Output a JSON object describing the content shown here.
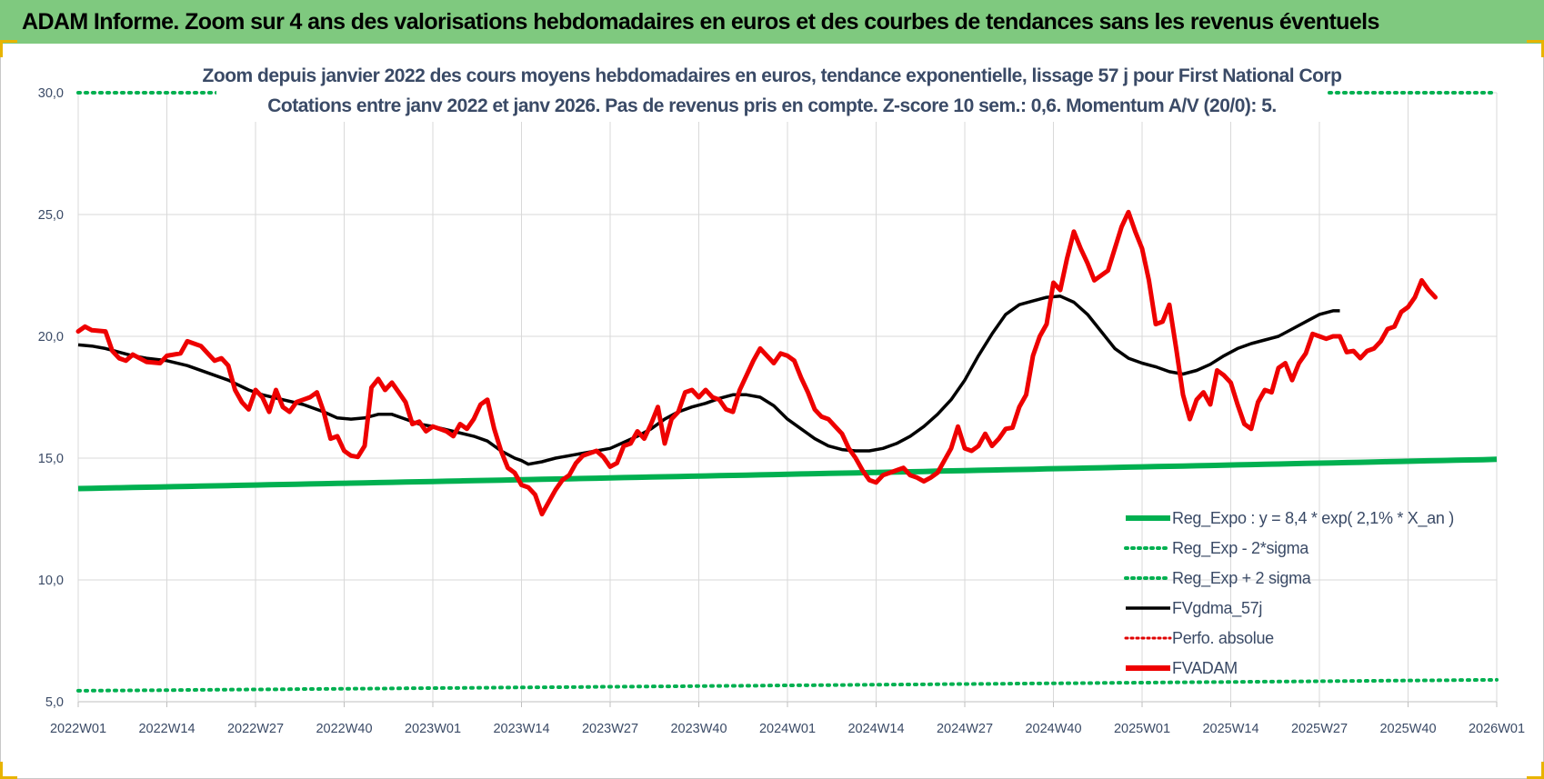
{
  "banner": {
    "title": "ADAM Informe. Zoom sur 4 ans des valorisations hebdomadaires en euros et des courbes de tendances sans les revenus éventuels"
  },
  "chart_data": {
    "type": "line",
    "title": "Zoom depuis janvier 2022 des cours moyens hebdomadaires en euros, tendance exponentielle, lissage 57 j pour First National Corp",
    "subtitle": "Cotations entre janv 2022 et janv 2026. Pas de revenus pris en compte. Z-score 10 sem.: 0,6. Momentum A/V (20/0): 5.",
    "xlabel": "",
    "ylabel": "",
    "x_ticks": [
      "2022W01",
      "2022W14",
      "2022W27",
      "2022W40",
      "2023W01",
      "2023W14",
      "2023W27",
      "2023W40",
      "2024W01",
      "2024W14",
      "2024W27",
      "2024W40",
      "2025W01",
      "2025W14",
      "2025W27",
      "2025W40",
      "2026W01"
    ],
    "ylim": [
      5,
      30
    ],
    "y_ticks": [
      "5,0",
      "10,0",
      "15,0",
      "20,0",
      "25,0",
      "30,0"
    ],
    "grid": true,
    "legend_position": "bottom-right",
    "colors": {
      "reg_expo": "#00b050",
      "fvgdma": "#000000",
      "perfo": "#e00000",
      "fvadam": "#ee0000"
    },
    "series": [
      {
        "name": "Reg_Expo : y = 8,4 * exp( 2,1% *  X_an )",
        "style": "solid-thick",
        "color": "#00b050",
        "start": 13.75,
        "end": 14.95
      },
      {
        "name": "Reg_Exp - 2*sigma",
        "style": "dotted",
        "color": "#00b050",
        "start": 5.45,
        "end": 5.9
      },
      {
        "name": "Reg_Exp + 2 sigma",
        "style": "dotted",
        "color": "#00b050",
        "start": 30.0,
        "end": 30.0
      },
      {
        "name": "FVgdma_57j",
        "style": "solid",
        "color": "#000000",
        "points": [
          [
            0,
            19.65
          ],
          [
            2,
            19.6
          ],
          [
            4,
            19.5
          ],
          [
            6,
            19.35
          ],
          [
            8,
            19.2
          ],
          [
            10,
            19.1
          ],
          [
            13,
            19.0
          ],
          [
            16,
            18.8
          ],
          [
            19,
            18.5
          ],
          [
            22,
            18.2
          ],
          [
            25,
            17.8
          ],
          [
            27,
            17.6
          ],
          [
            30,
            17.4
          ],
          [
            33,
            17.2
          ],
          [
            36,
            16.9
          ],
          [
            38,
            16.65
          ],
          [
            40,
            16.6
          ],
          [
            42,
            16.65
          ],
          [
            44,
            16.8
          ],
          [
            46,
            16.8
          ],
          [
            48,
            16.6
          ],
          [
            50,
            16.4
          ],
          [
            52,
            16.3
          ],
          [
            55,
            16.1
          ],
          [
            58,
            15.9
          ],
          [
            60,
            15.7
          ],
          [
            62,
            15.3
          ],
          [
            64,
            15.0
          ],
          [
            65,
            14.9
          ],
          [
            66,
            14.75
          ],
          [
            68,
            14.85
          ],
          [
            70,
            15.0
          ],
          [
            72,
            15.1
          ],
          [
            74,
            15.2
          ],
          [
            76,
            15.3
          ],
          [
            78,
            15.4
          ],
          [
            80,
            15.65
          ],
          [
            82,
            15.9
          ],
          [
            84,
            16.2
          ],
          [
            86,
            16.6
          ],
          [
            88,
            16.9
          ],
          [
            90,
            17.1
          ],
          [
            92,
            17.25
          ],
          [
            94,
            17.45
          ],
          [
            96,
            17.6
          ],
          [
            98,
            17.6
          ],
          [
            100,
            17.5
          ],
          [
            102,
            17.15
          ],
          [
            104,
            16.6
          ],
          [
            106,
            16.2
          ],
          [
            108,
            15.8
          ],
          [
            110,
            15.5
          ],
          [
            112,
            15.35
          ],
          [
            114,
            15.3
          ],
          [
            116,
            15.3
          ],
          [
            118,
            15.4
          ],
          [
            120,
            15.6
          ],
          [
            122,
            15.9
          ],
          [
            124,
            16.3
          ],
          [
            126,
            16.8
          ],
          [
            128,
            17.4
          ],
          [
            130,
            18.2
          ],
          [
            132,
            19.2
          ],
          [
            134,
            20.1
          ],
          [
            136,
            20.9
          ],
          [
            138,
            21.3
          ],
          [
            140,
            21.45
          ],
          [
            142,
            21.6
          ],
          [
            144,
            21.65
          ],
          [
            146,
            21.4
          ],
          [
            148,
            20.9
          ],
          [
            150,
            20.2
          ],
          [
            152,
            19.5
          ],
          [
            154,
            19.1
          ],
          [
            156,
            18.9
          ],
          [
            158,
            18.75
          ],
          [
            160,
            18.55
          ],
          [
            162,
            18.45
          ],
          [
            164,
            18.6
          ],
          [
            166,
            18.85
          ],
          [
            168,
            19.2
          ],
          [
            170,
            19.5
          ],
          [
            172,
            19.7
          ],
          [
            174,
            19.85
          ],
          [
            176,
            20.0
          ],
          [
            178,
            20.3
          ],
          [
            180,
            20.6
          ],
          [
            182,
            20.9
          ],
          [
            184,
            21.05
          ],
          [
            185,
            21.05
          ]
        ]
      },
      {
        "name": "Perfo. absolue",
        "style": "dotted",
        "color": "#e00000"
      },
      {
        "name": "FVADAM",
        "style": "solid-thick",
        "color": "#ee0000",
        "points": [
          [
            0,
            20.2
          ],
          [
            1,
            20.4
          ],
          [
            2,
            20.25
          ],
          [
            4,
            20.2
          ],
          [
            5,
            19.4
          ],
          [
            6,
            19.1
          ],
          [
            7,
            19.0
          ],
          [
            8,
            19.25
          ],
          [
            9,
            19.1
          ],
          [
            10,
            18.95
          ],
          [
            12,
            18.9
          ],
          [
            13,
            19.2
          ],
          [
            15,
            19.3
          ],
          [
            16,
            19.8
          ],
          [
            18,
            19.6
          ],
          [
            19,
            19.3
          ],
          [
            20,
            19.0
          ],
          [
            21,
            19.1
          ],
          [
            22,
            18.8
          ],
          [
            23,
            17.8
          ],
          [
            24,
            17.3
          ],
          [
            25,
            17.0
          ],
          [
            26,
            17.8
          ],
          [
            27,
            17.5
          ],
          [
            28,
            16.9
          ],
          [
            29,
            17.8
          ],
          [
            30,
            17.1
          ],
          [
            31,
            16.9
          ],
          [
            32,
            17.3
          ],
          [
            33,
            17.4
          ],
          [
            34,
            17.5
          ],
          [
            35,
            17.7
          ],
          [
            36,
            16.9
          ],
          [
            37,
            15.8
          ],
          [
            38,
            15.9
          ],
          [
            39,
            15.3
          ],
          [
            40,
            15.1
          ],
          [
            41,
            15.05
          ],
          [
            42,
            15.5
          ],
          [
            43,
            17.9
          ],
          [
            44,
            18.25
          ],
          [
            45,
            17.8
          ],
          [
            46,
            18.1
          ],
          [
            47,
            17.7
          ],
          [
            48,
            17.3
          ],
          [
            49,
            16.4
          ],
          [
            50,
            16.5
          ],
          [
            51,
            16.1
          ],
          [
            52,
            16.3
          ],
          [
            53,
            16.2
          ],
          [
            54,
            16.1
          ],
          [
            55,
            15.9
          ],
          [
            56,
            16.4
          ],
          [
            57,
            16.2
          ],
          [
            58,
            16.6
          ],
          [
            59,
            17.2
          ],
          [
            60,
            17.4
          ],
          [
            61,
            16.2
          ],
          [
            62,
            15.3
          ],
          [
            63,
            14.6
          ],
          [
            64,
            14.4
          ],
          [
            65,
            13.9
          ],
          [
            66,
            13.8
          ],
          [
            67,
            13.5
          ],
          [
            68,
            12.7
          ],
          [
            69,
            13.2
          ],
          [
            70,
            13.7
          ],
          [
            71,
            14.1
          ],
          [
            72,
            14.3
          ],
          [
            73,
            14.8
          ],
          [
            74,
            15.1
          ],
          [
            75,
            15.2
          ],
          [
            76,
            15.3
          ],
          [
            77,
            15.05
          ],
          [
            78,
            14.65
          ],
          [
            79,
            14.8
          ],
          [
            80,
            15.5
          ],
          [
            81,
            15.6
          ],
          [
            82,
            16.1
          ],
          [
            83,
            15.8
          ],
          [
            84,
            16.4
          ],
          [
            85,
            17.1
          ],
          [
            86,
            15.6
          ],
          [
            87,
            16.6
          ],
          [
            88,
            16.9
          ],
          [
            89,
            17.7
          ],
          [
            90,
            17.8
          ],
          [
            91,
            17.5
          ],
          [
            92,
            17.8
          ],
          [
            93,
            17.5
          ],
          [
            94,
            17.4
          ],
          [
            95,
            17.0
          ],
          [
            96,
            16.9
          ],
          [
            97,
            17.8
          ],
          [
            98,
            18.4
          ],
          [
            99,
            19.0
          ],
          [
            100,
            19.5
          ],
          [
            101,
            19.2
          ],
          [
            102,
            18.9
          ],
          [
            103,
            19.3
          ],
          [
            104,
            19.2
          ],
          [
            105,
            19.0
          ],
          [
            106,
            18.3
          ],
          [
            107,
            17.7
          ],
          [
            108,
            17.0
          ],
          [
            109,
            16.7
          ],
          [
            110,
            16.6
          ],
          [
            111,
            16.3
          ],
          [
            112,
            16.0
          ],
          [
            113,
            15.4
          ],
          [
            114,
            15.0
          ],
          [
            115,
            14.5
          ],
          [
            116,
            14.1
          ],
          [
            117,
            14.0
          ],
          [
            118,
            14.3
          ],
          [
            119,
            14.4
          ],
          [
            120,
            14.5
          ],
          [
            121,
            14.6
          ],
          [
            122,
            14.3
          ],
          [
            123,
            14.2
          ],
          [
            124,
            14.05
          ],
          [
            125,
            14.2
          ],
          [
            126,
            14.4
          ],
          [
            127,
            14.9
          ],
          [
            128,
            15.4
          ],
          [
            129,
            16.3
          ],
          [
            130,
            15.4
          ],
          [
            131,
            15.3
          ],
          [
            132,
            15.5
          ],
          [
            133,
            16.0
          ],
          [
            134,
            15.5
          ],
          [
            135,
            15.8
          ],
          [
            136,
            16.2
          ],
          [
            137,
            16.25
          ],
          [
            138,
            17.1
          ],
          [
            139,
            17.6
          ],
          [
            140,
            19.2
          ],
          [
            141,
            20.0
          ],
          [
            142,
            20.5
          ],
          [
            143,
            22.2
          ],
          [
            144,
            21.9
          ],
          [
            145,
            23.2
          ],
          [
            146,
            24.3
          ],
          [
            147,
            23.6
          ],
          [
            148,
            23.0
          ],
          [
            149,
            22.3
          ],
          [
            150,
            22.5
          ],
          [
            151,
            22.7
          ],
          [
            152,
            23.6
          ],
          [
            153,
            24.5
          ],
          [
            154,
            25.1
          ],
          [
            155,
            24.3
          ],
          [
            156,
            23.6
          ],
          [
            157,
            22.3
          ],
          [
            158,
            20.5
          ],
          [
            159,
            20.6
          ],
          [
            160,
            21.3
          ],
          [
            161,
            19.5
          ],
          [
            162,
            17.6
          ],
          [
            163,
            16.6
          ],
          [
            164,
            17.4
          ],
          [
            165,
            17.7
          ],
          [
            166,
            17.2
          ],
          [
            167,
            18.6
          ],
          [
            168,
            18.4
          ],
          [
            169,
            18.1
          ],
          [
            170,
            17.2
          ],
          [
            171,
            16.4
          ],
          [
            172,
            16.2
          ],
          [
            173,
            17.3
          ],
          [
            174,
            17.8
          ],
          [
            175,
            17.7
          ],
          [
            176,
            18.7
          ],
          [
            177,
            18.9
          ],
          [
            178,
            18.2
          ],
          [
            179,
            18.9
          ],
          [
            180,
            19.3
          ],
          [
            181,
            20.1
          ],
          [
            182,
            20.0
          ],
          [
            183,
            19.9
          ],
          [
            184,
            20.0
          ],
          [
            185,
            20.0
          ],
          [
            186,
            19.35
          ],
          [
            187,
            19.4
          ],
          [
            188,
            19.1
          ],
          [
            189,
            19.4
          ],
          [
            190,
            19.5
          ],
          [
            191,
            19.8
          ],
          [
            192,
            20.3
          ],
          [
            193,
            20.4
          ],
          [
            194,
            21.0
          ],
          [
            195,
            21.2
          ],
          [
            196,
            21.6
          ],
          [
            197,
            22.3
          ],
          [
            198,
            21.9
          ],
          [
            199,
            21.6
          ]
        ]
      }
    ]
  }
}
